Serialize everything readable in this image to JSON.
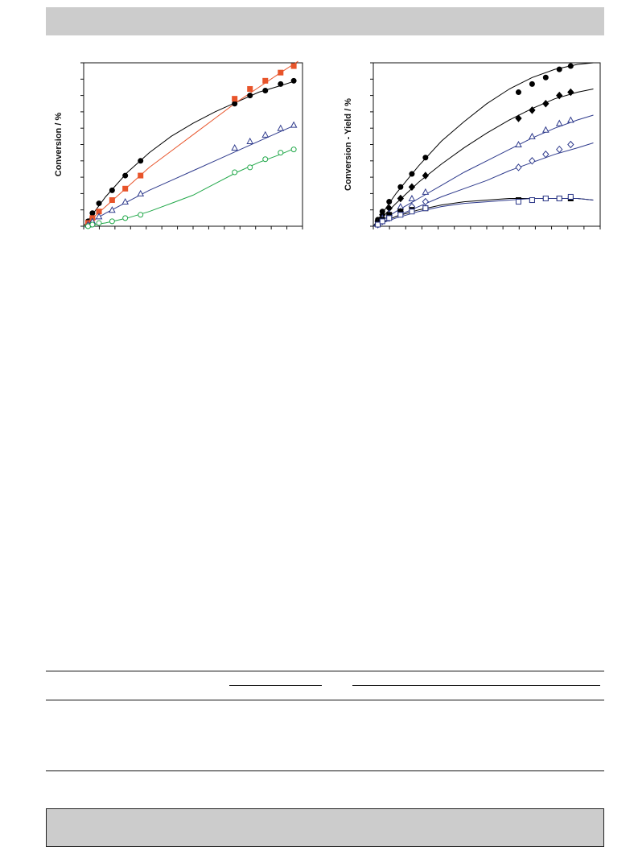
{
  "page": {
    "header_bar_color": "#cccccc",
    "footer_bar_color": "#cccccc"
  },
  "chart_data": [
    {
      "type": "scatter",
      "title": "",
      "xlabel": "",
      "ylabel": "Conversion / %",
      "grid": false,
      "x_ticks": 14,
      "y_ticks": 10,
      "xlim": [
        0,
        100
      ],
      "ylim": [
        0,
        100
      ],
      "series": [
        {
          "color": "#000000",
          "marker": "filled-circle",
          "line_color": "#000000",
          "x": [
            2,
            4,
            7,
            13,
            19,
            26,
            69,
            76,
            83,
            90,
            96
          ],
          "y": [
            3,
            8,
            14,
            22,
            31,
            40,
            75,
            80,
            83,
            87,
            89
          ],
          "fit_x": [
            0,
            10,
            20,
            30,
            40,
            50,
            60,
            70,
            80,
            90,
            97
          ],
          "fit_y": [
            0,
            18,
            33,
            45,
            55,
            63,
            70,
            76,
            82,
            86,
            89
          ]
        },
        {
          "color": "#e8542a",
          "marker": "filled-square",
          "line_color": "#e8542a",
          "x": [
            2,
            4,
            7,
            13,
            19,
            26,
            69,
            76,
            83,
            90,
            96
          ],
          "y": [
            2,
            5,
            9,
            16,
            23,
            31,
            78,
            84,
            89,
            94,
            98
          ],
          "fit_x": [
            0,
            10,
            20,
            30,
            40,
            50,
            60,
            70,
            80,
            90,
            98
          ],
          "fit_y": [
            0,
            12,
            24,
            36,
            46,
            56,
            66,
            76,
            85,
            94,
            101
          ]
        },
        {
          "color": "#2e3a8c",
          "marker": "open-triangle",
          "line_color": "#2e3a8c",
          "x": [
            2,
            4,
            7,
            13,
            19,
            26,
            69,
            76,
            83,
            90,
            96
          ],
          "y": [
            1,
            3,
            6,
            10,
            15,
            20,
            48,
            52,
            56,
            60,
            62
          ],
          "fit_x": [
            0,
            10,
            20,
            30,
            40,
            50,
            60,
            70,
            80,
            90,
            97
          ],
          "fit_y": [
            0,
            8,
            15,
            22,
            28,
            34,
            40,
            46,
            52,
            58,
            62
          ]
        },
        {
          "color": "#22a84a",
          "marker": "open-circle",
          "line_color": "#22a84a",
          "x": [
            2,
            4,
            7,
            13,
            19,
            26,
            69,
            76,
            83,
            90,
            96
          ],
          "y": [
            0,
            1,
            2,
            3,
            5,
            7,
            33,
            36,
            41,
            45,
            47
          ],
          "fit_x": [
            0,
            10,
            20,
            30,
            40,
            50,
            60,
            70,
            80,
            90,
            97
          ],
          "fit_y": [
            0,
            2,
            5,
            9,
            14,
            19,
            26,
            33,
            39,
            44,
            48
          ]
        }
      ]
    },
    {
      "type": "scatter",
      "title": "",
      "xlabel": "",
      "ylabel": "Conversion - Yield / %",
      "grid": false,
      "x_ticks": 14,
      "y_ticks": 10,
      "xlim": [
        0,
        100
      ],
      "ylim": [
        0,
        100
      ],
      "series": [
        {
          "color": "#000000",
          "marker": "filled-circle",
          "line_color": "#000000",
          "x": [
            2,
            4,
            7,
            12,
            17,
            23,
            64,
            70,
            76,
            82,
            87
          ],
          "y": [
            4,
            9,
            15,
            24,
            32,
            42,
            82,
            87,
            91,
            96,
            98
          ],
          "fit_x": [
            0,
            10,
            20,
            30,
            40,
            50,
            60,
            70,
            80,
            90,
            97
          ],
          "fit_y": [
            0,
            20,
            37,
            52,
            64,
            75,
            84,
            91,
            96,
            99,
            100
          ]
        },
        {
          "color": "#000000",
          "marker": "filled-diamond",
          "line_color": "#000000",
          "x": [
            2,
            4,
            7,
            12,
            17,
            23,
            64,
            70,
            76,
            82,
            87
          ],
          "y": [
            3,
            7,
            11,
            17,
            24,
            31,
            66,
            71,
            75,
            80,
            82
          ],
          "fit_x": [
            0,
            10,
            20,
            30,
            40,
            50,
            60,
            70,
            80,
            90,
            97
          ],
          "fit_y": [
            0,
            14,
            27,
            38,
            48,
            57,
            65,
            72,
            78,
            82,
            84
          ]
        },
        {
          "color": "#2e3a8c",
          "marker": "open-triangle",
          "line_color": "#2e3a8c",
          "x": [
            2,
            4,
            7,
            12,
            17,
            23,
            64,
            70,
            76,
            82,
            87
          ],
          "y": [
            2,
            5,
            8,
            12,
            17,
            21,
            50,
            55,
            59,
            63,
            65
          ],
          "fit_x": [
            0,
            10,
            20,
            30,
            40,
            50,
            60,
            70,
            80,
            90,
            97
          ],
          "fit_y": [
            0,
            9,
            17,
            25,
            33,
            40,
            47,
            54,
            60,
            65,
            68
          ]
        },
        {
          "color": "#2e3a8c",
          "marker": "open-diamond",
          "line_color": "#2e3a8c",
          "x": [
            2,
            4,
            7,
            12,
            17,
            23,
            64,
            70,
            76,
            82,
            87
          ],
          "y": [
            1,
            3,
            5,
            9,
            12,
            15,
            36,
            40,
            44,
            47,
            50
          ],
          "fit_x": [
            0,
            10,
            20,
            30,
            40,
            50,
            60,
            70,
            80,
            90,
            97
          ],
          "fit_y": [
            0,
            6,
            12,
            18,
            23,
            28,
            34,
            39,
            44,
            48,
            51
          ]
        },
        {
          "color": "#000000",
          "marker": "filled-square",
          "line_color": "#000000",
          "x": [
            2,
            4,
            7,
            12,
            17,
            23,
            64,
            70,
            76,
            82,
            87
          ],
          "y": [
            2,
            4,
            7,
            9,
            10,
            11,
            16,
            16,
            17,
            17,
            17
          ],
          "fit_x": [
            0,
            10,
            20,
            30,
            40,
            50,
            60,
            70,
            80,
            90,
            97
          ],
          "fit_y": [
            0,
            6,
            10,
            13,
            15,
            16,
            17,
            17,
            17,
            17,
            16
          ]
        },
        {
          "color": "#2e3a8c",
          "marker": "open-square",
          "line_color": "#2e3a8c",
          "x": [
            2,
            4,
            7,
            12,
            17,
            23,
            64,
            70,
            76,
            82,
            87
          ],
          "y": [
            1,
            3,
            5,
            7,
            9,
            11,
            15,
            16,
            17,
            17,
            18
          ],
          "fit_x": [
            0,
            10,
            20,
            30,
            40,
            50,
            60,
            70,
            80,
            90,
            97
          ],
          "fit_y": [
            0,
            5,
            9,
            12,
            14,
            15,
            16,
            17,
            17,
            17,
            16
          ]
        }
      ]
    }
  ]
}
